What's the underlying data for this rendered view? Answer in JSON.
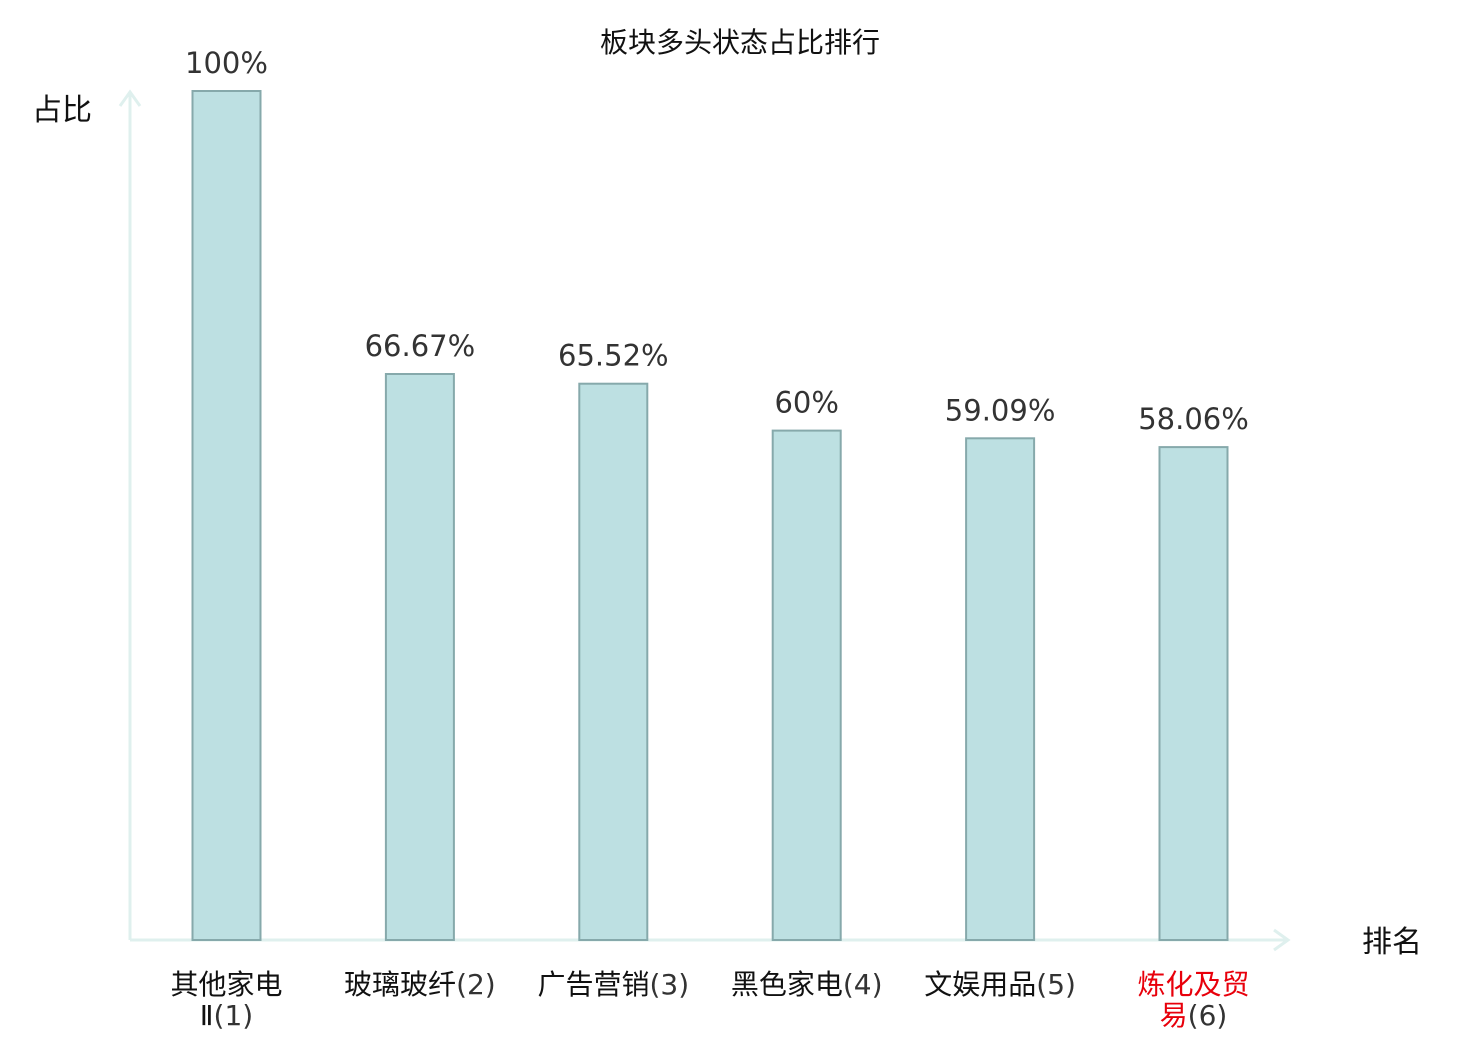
{
  "chart_data": {
    "type": "bar",
    "title": "板块多头状态占比排行",
    "ylabel": "占比",
    "xlabel": "排名",
    "ylim": [
      0,
      100
    ],
    "grid": false,
    "categories": [
      {
        "name_lines": [
          "其他家电",
          "Ⅱ"
        ],
        "rank": "(1)",
        "highlight": false
      },
      {
        "name_lines": [
          "玻璃玻纤"
        ],
        "rank": "(2)",
        "highlight": false
      },
      {
        "name_lines": [
          "广告营销"
        ],
        "rank": "(3)",
        "highlight": false
      },
      {
        "name_lines": [
          "黑色家电"
        ],
        "rank": "(4)",
        "highlight": false
      },
      {
        "name_lines": [
          "文娱用品"
        ],
        "rank": "(5)",
        "highlight": false
      },
      {
        "name_lines": [
          "炼化及贸",
          "易"
        ],
        "rank": "(6)",
        "highlight": true
      }
    ],
    "values": [
      100,
      66.67,
      65.52,
      60,
      59.09,
      58.06
    ],
    "value_labels": [
      "100%",
      "66.67%",
      "65.52%",
      "60%",
      "59.09%",
      "58.06%"
    ]
  },
  "colors": {
    "bar_fill": "#bde0e2",
    "bar_stroke": "#86a9ab",
    "axis": "#dff0ee",
    "highlight_text": "#e8000b"
  }
}
